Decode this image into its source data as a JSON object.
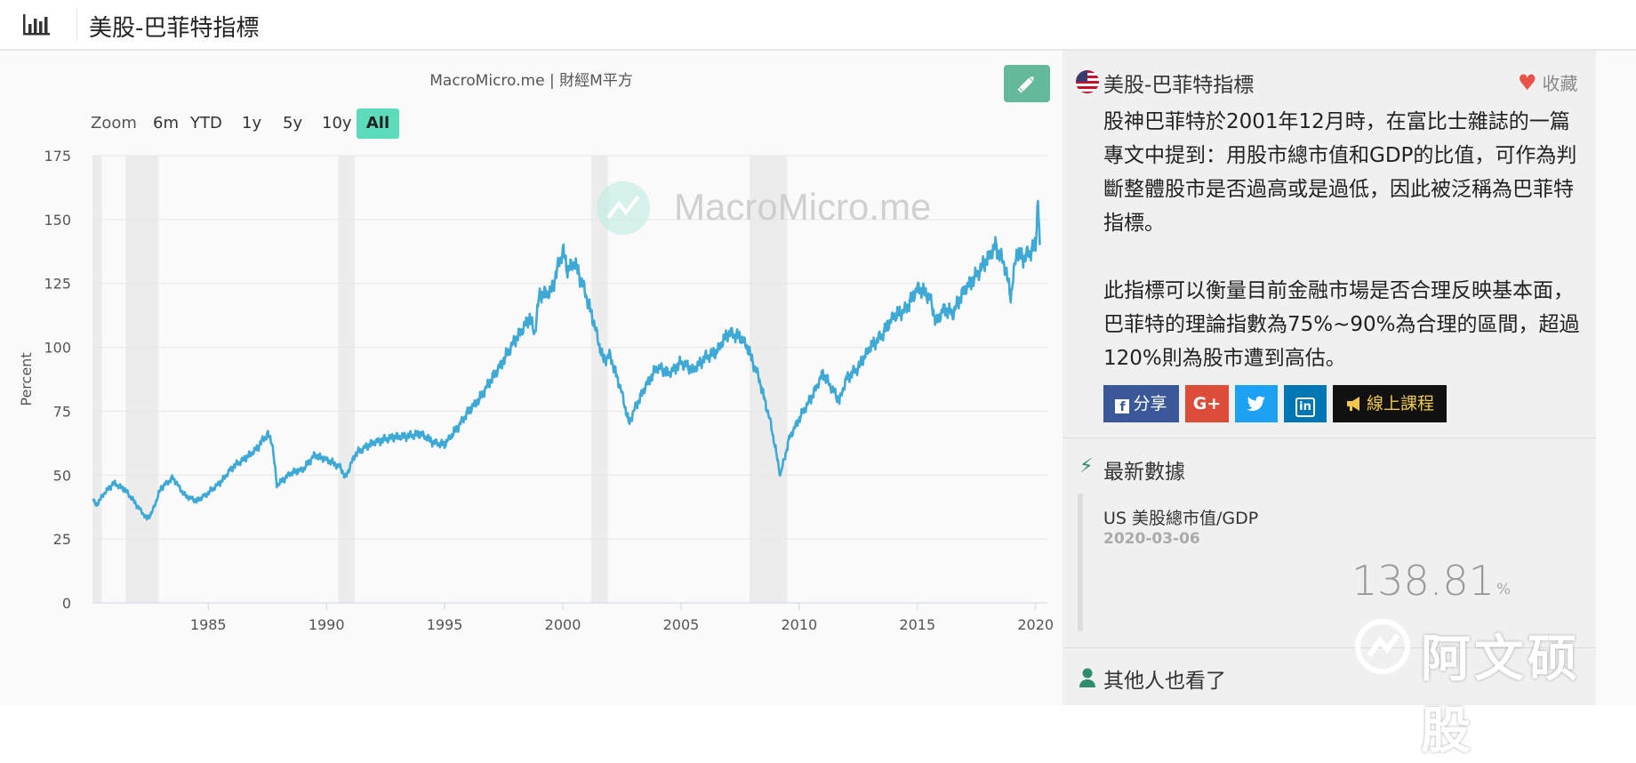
{
  "header": {
    "title": "美股-巴菲特指標",
    "logo_icon": "bar-chart-icon"
  },
  "chart_panel": {
    "credit": "MacroMicro.me | 財經M平方",
    "watermark": "MacroMicro.me",
    "edit_icon": "pencil-icon",
    "zoom": {
      "label": "Zoom",
      "options": [
        "6m",
        "YTD",
        "1y",
        "5y",
        "10y",
        "All"
      ],
      "active": "All"
    }
  },
  "chart_data": {
    "type": "line",
    "title": "",
    "xlabel": "",
    "ylabel": "Percent",
    "xlim": [
      1980.1,
      2020.5
    ],
    "ylim": [
      0,
      175
    ],
    "y_ticks": [
      0,
      25,
      50,
      75,
      100,
      125,
      150,
      175
    ],
    "x_ticks": [
      1985,
      1990,
      1995,
      2000,
      2005,
      2010,
      2015,
      2020
    ],
    "grid": true,
    "legend": "bottom-center",
    "recessions": [
      [
        1980.0,
        1980.5
      ],
      [
        1981.5,
        1982.9
      ],
      [
        1990.5,
        1991.2
      ],
      [
        2001.2,
        2001.9
      ],
      [
        2007.9,
        2009.5
      ]
    ],
    "series": [
      {
        "name": "US 美股總市值/GDP",
        "color": "#3fa9d5",
        "x": [
          1980.1,
          1980.25,
          1980.6,
          1981.0,
          1981.5,
          1982.0,
          1982.4,
          1982.6,
          1983.0,
          1983.5,
          1984.0,
          1984.5,
          1985.0,
          1985.5,
          1986.0,
          1986.5,
          1987.0,
          1987.5,
          1987.7,
          1987.9,
          1988.5,
          1989.0,
          1989.5,
          1990.0,
          1990.6,
          1990.8,
          1991.2,
          1992.0,
          1993.0,
          1994.0,
          1994.5,
          1995.0,
          1995.5,
          1996.0,
          1996.5,
          1997.0,
          1997.5,
          1998.0,
          1998.6,
          1998.8,
          1999.0,
          1999.5,
          2000.0,
          2000.2,
          2000.5,
          2000.8,
          2001.0,
          2001.3,
          2001.7,
          2002.0,
          2002.5,
          2002.8,
          2003.0,
          2003.5,
          2004.0,
          2004.5,
          2005.0,
          2005.5,
          2006.0,
          2006.5,
          2007.0,
          2007.5,
          2007.8,
          2008.3,
          2008.8,
          2009.2,
          2009.6,
          2010.0,
          2010.5,
          2011.0,
          2011.3,
          2011.7,
          2012.0,
          2012.5,
          2013.0,
          2013.5,
          2014.0,
          2014.5,
          2015.0,
          2015.5,
          2015.8,
          2016.1,
          2016.5,
          2017.0,
          2017.5,
          2018.0,
          2018.3,
          2018.7,
          2018.95,
          2019.2,
          2019.5,
          2020.0,
          2020.1,
          2020.18
        ],
        "values": [
          41,
          38,
          43,
          47,
          44,
          38,
          33,
          35,
          45,
          49,
          42,
          40,
          43,
          47,
          53,
          56,
          60,
          66,
          63,
          46,
          51,
          52,
          58,
          56,
          53,
          49,
          58,
          63,
          65,
          66,
          63,
          62,
          68,
          75,
          80,
          88,
          95,
          103,
          112,
          105,
          120,
          122,
          138,
          130,
          133,
          126,
          120,
          110,
          95,
          97,
          82,
          70,
          75,
          85,
          92,
          90,
          94,
          91,
          96,
          98,
          106,
          104,
          100,
          88,
          70,
          50,
          65,
          72,
          80,
          90,
          85,
          79,
          88,
          92,
          100,
          105,
          112,
          115,
          123,
          120,
          110,
          115,
          113,
          123,
          128,
          135,
          140,
          132,
          120,
          137,
          135,
          140,
          158,
          140
        ]
      }
    ]
  },
  "sidebar": {
    "flag_icon": "us-flag-icon",
    "title": "美股-巴菲特指標",
    "favorite_label": "收藏",
    "favorite_icon": "heart-icon",
    "desc_paragraphs": [
      "股神巴菲特於2001年12月時，在富比士雜誌的一篇專文中提到：用股市總市值和GDP的比值，可作為判斷整體股市是否過高或是過低，因此被泛稱為巴菲特指標。",
      "此指標可以衡量目前金融市場是否合理反映基本面，巴菲特的理論指數為75%~90%為合理的區間，超過120%則為股市遭到高估。"
    ],
    "share": {
      "facebook_label": "分享",
      "facebook_color": "#3b5998",
      "google_label": "G+",
      "google_color": "#dd4b39",
      "twitter_icon": "twitter-icon",
      "twitter_color": "#1da1f2",
      "linkedin_label": "in",
      "linkedin_color": "#0077b5",
      "course_label": "線上課程",
      "course_icon": "megaphone-icon",
      "course_color": "#111111"
    },
    "latest": {
      "section_title": "最新數據",
      "section_icon": "bolt-icon",
      "name": "US 美股總市值/GDP",
      "date": "2020-03-06",
      "value": "138.81",
      "unit": "%"
    },
    "others": {
      "section_title": "其他人也看了",
      "section_icon": "user-icon"
    },
    "corner_watermark": "阿文硕股"
  }
}
